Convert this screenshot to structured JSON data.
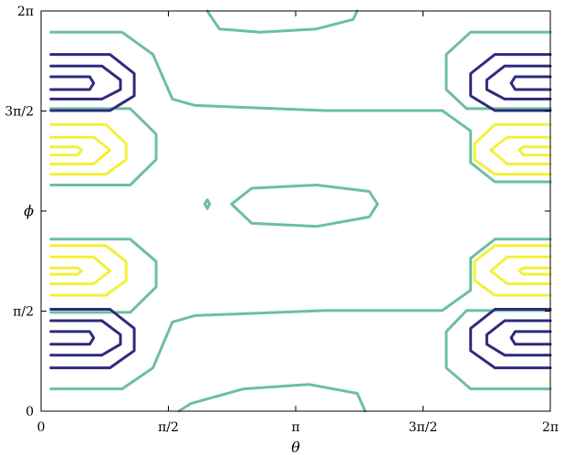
{
  "chart_data": {
    "type": "contour",
    "xlabel": "θ",
    "ylabel": "ϕ",
    "xlim": [
      0,
      6.2832
    ],
    "ylim": [
      0,
      6.2832
    ],
    "x_ticks": [
      {
        "value": 0,
        "label": "0"
      },
      {
        "value": 1.5708,
        "label": "π/2"
      },
      {
        "value": 3.1416,
        "label": "π"
      },
      {
        "value": 4.7124,
        "label": "3π/2"
      },
      {
        "value": 6.2832,
        "label": "2π"
      }
    ],
    "y_ticks": [
      {
        "value": 0,
        "label": "0"
      },
      {
        "value": 1.5708,
        "label": "π/2"
      },
      {
        "value": 3.1416,
        "label": "ϕ"
      },
      {
        "value": 4.7124,
        "label": "3π/2"
      },
      {
        "value": 6.2832,
        "label": "2π"
      }
    ],
    "colors": {
      "dark": "#2e2a7e",
      "mid": "#6bbfa3",
      "bright": "#f3f03a"
    },
    "grid": false,
    "legend": "none",
    "contours": [
      {
        "level": "mid",
        "points": [
          [
            0.12,
            5.95
          ],
          [
            1.0,
            5.95
          ],
          [
            1.38,
            5.6
          ],
          [
            1.62,
            4.9
          ],
          [
            1.9,
            4.8
          ],
          [
            3.5,
            4.72
          ],
          [
            4.95,
            4.72
          ],
          [
            5.3,
            4.4
          ],
          [
            5.3,
            3.9
          ],
          [
            5.6,
            3.6
          ],
          [
            6.2832,
            3.6
          ]
        ]
      },
      {
        "level": "mid",
        "points": [
          [
            0.12,
            0.35
          ],
          [
            1.0,
            0.35
          ],
          [
            1.38,
            0.68
          ],
          [
            1.62,
            1.4
          ],
          [
            1.9,
            1.5
          ],
          [
            3.5,
            1.58
          ],
          [
            4.95,
            1.58
          ],
          [
            5.3,
            1.9
          ],
          [
            5.3,
            2.4
          ],
          [
            5.6,
            2.7
          ],
          [
            6.2832,
            2.7
          ]
        ]
      },
      {
        "level": "mid",
        "points": [
          [
            0.12,
            4.75
          ],
          [
            1.1,
            4.75
          ],
          [
            1.42,
            4.35
          ],
          [
            1.42,
            3.95
          ],
          [
            1.1,
            3.55
          ],
          [
            0.12,
            3.55
          ]
        ]
      },
      {
        "level": "mid",
        "points": [
          [
            0.12,
            2.7
          ],
          [
            1.1,
            2.7
          ],
          [
            1.42,
            2.35
          ],
          [
            1.42,
            1.95
          ],
          [
            1.1,
            1.55
          ],
          [
            0.12,
            1.55
          ]
        ]
      },
      {
        "level": "mid",
        "points": [
          [
            6.2832,
            5.95
          ],
          [
            5.3,
            5.95
          ],
          [
            5.0,
            5.6
          ],
          [
            5.0,
            5.05
          ],
          [
            5.25,
            4.75
          ],
          [
            6.2832,
            4.75
          ]
        ]
      },
      {
        "level": "mid",
        "points": [
          [
            6.2832,
            0.35
          ],
          [
            5.3,
            0.35
          ],
          [
            5.0,
            0.68
          ],
          [
            5.0,
            1.25
          ],
          [
            5.25,
            1.58
          ],
          [
            6.2832,
            1.58
          ]
        ]
      },
      {
        "level": "mid",
        "points": [
          [
            2.35,
            3.25
          ],
          [
            2.6,
            3.5
          ],
          [
            3.4,
            3.55
          ],
          [
            4.05,
            3.45
          ],
          [
            4.15,
            3.25
          ],
          [
            4.05,
            3.05
          ],
          [
            3.4,
            2.9
          ],
          [
            2.6,
            2.95
          ],
          [
            2.35,
            3.25
          ]
        ]
      },
      {
        "level": "mid",
        "points": [
          [
            2.02,
            3.25
          ],
          [
            2.05,
            3.32
          ],
          [
            2.08,
            3.25
          ],
          [
            2.05,
            3.18
          ],
          [
            2.02,
            3.25
          ]
        ]
      },
      {
        "level": "mid",
        "points": [
          [
            2.05,
            6.2832
          ],
          [
            2.2,
            6.0
          ],
          [
            2.7,
            5.95
          ],
          [
            3.4,
            6.0
          ],
          [
            3.85,
            6.15
          ],
          [
            3.9,
            6.2832
          ]
        ]
      },
      {
        "level": "mid",
        "points": [
          [
            1.7,
            0.0
          ],
          [
            1.85,
            0.12
          ],
          [
            2.5,
            0.35
          ],
          [
            3.3,
            0.42
          ],
          [
            3.9,
            0.28
          ],
          [
            4.0,
            0.0
          ]
        ]
      },
      {
        "level": "dark",
        "points": [
          [
            0.12,
            5.6
          ],
          [
            0.85,
            5.6
          ],
          [
            1.15,
            5.3
          ],
          [
            1.15,
            4.95
          ],
          [
            0.85,
            4.72
          ],
          [
            0.12,
            4.72
          ]
        ]
      },
      {
        "level": "dark",
        "points": [
          [
            0.12,
            5.42
          ],
          [
            0.75,
            5.42
          ],
          [
            0.98,
            5.2
          ],
          [
            0.98,
            5.05
          ],
          [
            0.75,
            4.9
          ],
          [
            0.12,
            4.9
          ]
        ]
      },
      {
        "level": "dark",
        "points": [
          [
            0.12,
            5.25
          ],
          [
            0.6,
            5.25
          ],
          [
            0.65,
            5.15
          ],
          [
            0.6,
            5.05
          ],
          [
            0.12,
            5.05
          ]
        ]
      },
      {
        "level": "dark",
        "points": [
          [
            0.12,
            1.6
          ],
          [
            0.85,
            1.6
          ],
          [
            1.15,
            1.3
          ],
          [
            1.15,
            0.95
          ],
          [
            0.85,
            0.68
          ],
          [
            0.12,
            0.68
          ]
        ]
      },
      {
        "level": "dark",
        "points": [
          [
            0.12,
            1.42
          ],
          [
            0.75,
            1.42
          ],
          [
            0.98,
            1.2
          ],
          [
            0.98,
            1.05
          ],
          [
            0.75,
            0.88
          ],
          [
            0.12,
            0.88
          ]
        ]
      },
      {
        "level": "dark",
        "points": [
          [
            0.12,
            1.25
          ],
          [
            0.6,
            1.25
          ],
          [
            0.65,
            1.15
          ],
          [
            0.6,
            1.05
          ],
          [
            0.12,
            1.05
          ]
        ]
      },
      {
        "level": "dark",
        "points": [
          [
            6.2832,
            5.6
          ],
          [
            5.6,
            5.6
          ],
          [
            5.3,
            5.3
          ],
          [
            5.3,
            4.95
          ],
          [
            5.6,
            4.72
          ],
          [
            6.2832,
            4.72
          ]
        ]
      },
      {
        "level": "dark",
        "points": [
          [
            6.2832,
            5.42
          ],
          [
            5.72,
            5.42
          ],
          [
            5.5,
            5.2
          ],
          [
            5.5,
            5.05
          ],
          [
            5.72,
            4.9
          ],
          [
            6.2832,
            4.9
          ]
        ]
      },
      {
        "level": "dark",
        "points": [
          [
            6.2832,
            5.25
          ],
          [
            5.85,
            5.25
          ],
          [
            5.8,
            5.15
          ],
          [
            5.85,
            5.05
          ],
          [
            6.2832,
            5.05
          ]
        ]
      },
      {
        "level": "dark",
        "points": [
          [
            6.2832,
            1.6
          ],
          [
            5.6,
            1.6
          ],
          [
            5.3,
            1.3
          ],
          [
            5.3,
            0.95
          ],
          [
            5.6,
            0.68
          ],
          [
            6.2832,
            0.68
          ]
        ]
      },
      {
        "level": "dark",
        "points": [
          [
            6.2832,
            1.42
          ],
          [
            5.72,
            1.42
          ],
          [
            5.5,
            1.2
          ],
          [
            5.5,
            1.05
          ],
          [
            5.72,
            0.88
          ],
          [
            6.2832,
            0.88
          ]
        ]
      },
      {
        "level": "dark",
        "points": [
          [
            6.2832,
            1.25
          ],
          [
            5.85,
            1.25
          ],
          [
            5.8,
            1.15
          ],
          [
            5.85,
            1.05
          ],
          [
            6.2832,
            1.05
          ]
        ]
      },
      {
        "level": "bright",
        "points": [
          [
            0.12,
            4.5
          ],
          [
            0.8,
            4.5
          ],
          [
            1.05,
            4.2
          ],
          [
            1.05,
            3.95
          ],
          [
            0.8,
            3.72
          ],
          [
            0.12,
            3.72
          ]
        ]
      },
      {
        "level": "bright",
        "points": [
          [
            0.12,
            4.3
          ],
          [
            0.65,
            4.3
          ],
          [
            0.85,
            4.1
          ],
          [
            0.65,
            3.88
          ],
          [
            0.12,
            3.88
          ]
        ]
      },
      {
        "level": "bright",
        "points": [
          [
            0.12,
            4.15
          ],
          [
            0.45,
            4.15
          ],
          [
            0.5,
            4.1
          ],
          [
            0.45,
            4.02
          ],
          [
            0.12,
            4.02
          ]
        ]
      },
      {
        "level": "bright",
        "points": [
          [
            0.12,
            2.6
          ],
          [
            0.8,
            2.6
          ],
          [
            1.05,
            2.35
          ],
          [
            1.05,
            2.05
          ],
          [
            0.8,
            1.82
          ],
          [
            0.12,
            1.82
          ]
        ]
      },
      {
        "level": "bright",
        "points": [
          [
            0.12,
            2.42
          ],
          [
            0.65,
            2.42
          ],
          [
            0.85,
            2.2
          ],
          [
            0.65,
            2.0
          ],
          [
            0.12,
            2.0
          ]
        ]
      },
      {
        "level": "bright",
        "points": [
          [
            0.12,
            2.25
          ],
          [
            0.45,
            2.25
          ],
          [
            0.5,
            2.2
          ],
          [
            0.45,
            2.15
          ],
          [
            0.12,
            2.15
          ]
        ]
      },
      {
        "level": "bright",
        "points": [
          [
            6.2832,
            4.5
          ],
          [
            5.6,
            4.5
          ],
          [
            5.35,
            4.2
          ],
          [
            5.35,
            3.95
          ],
          [
            5.6,
            3.72
          ],
          [
            6.2832,
            3.72
          ]
        ]
      },
      {
        "level": "bright",
        "points": [
          [
            6.2832,
            4.3
          ],
          [
            5.75,
            4.3
          ],
          [
            5.55,
            4.1
          ],
          [
            5.75,
            3.88
          ],
          [
            6.2832,
            3.88
          ]
        ]
      },
      {
        "level": "bright",
        "points": [
          [
            6.2832,
            4.15
          ],
          [
            5.95,
            4.15
          ],
          [
            5.9,
            4.1
          ],
          [
            5.95,
            4.02
          ],
          [
            6.2832,
            4.02
          ]
        ]
      },
      {
        "level": "bright",
        "points": [
          [
            6.2832,
            2.6
          ],
          [
            5.6,
            2.6
          ],
          [
            5.35,
            2.35
          ],
          [
            5.35,
            2.05
          ],
          [
            5.6,
            1.82
          ],
          [
            6.2832,
            1.82
          ]
        ]
      },
      {
        "level": "bright",
        "points": [
          [
            6.2832,
            2.42
          ],
          [
            5.75,
            2.42
          ],
          [
            5.55,
            2.2
          ],
          [
            5.75,
            2.0
          ],
          [
            6.2832,
            2.0
          ]
        ]
      },
      {
        "level": "bright",
        "points": [
          [
            6.2832,
            2.25
          ],
          [
            5.95,
            2.25
          ],
          [
            5.9,
            2.2
          ],
          [
            5.95,
            2.15
          ],
          [
            6.2832,
            2.15
          ]
        ]
      }
    ]
  }
}
